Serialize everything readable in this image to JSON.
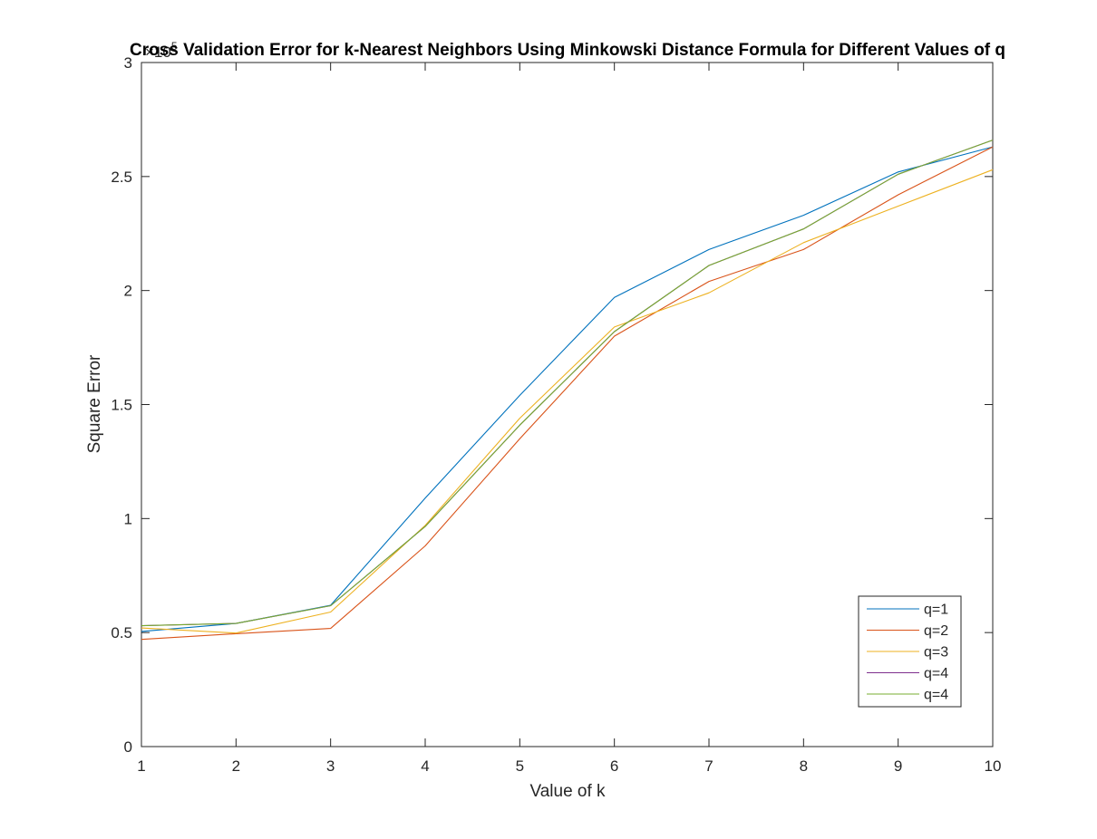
{
  "chart_data": {
    "type": "line",
    "title": "Cross Validation Error for k-Nearest Neighbors Using Minkowski Distance Formula for Different Values of q",
    "xlabel": "Value of k",
    "ylabel": "Square Error",
    "exponent_label": "×10",
    "exponent_power": "5",
    "x": [
      1,
      2,
      3,
      4,
      5,
      6,
      7,
      8,
      9,
      10
    ],
    "xlim": [
      1,
      10
    ],
    "ylim": [
      0,
      300000
    ],
    "xticks": [
      "1",
      "2",
      "3",
      "4",
      "5",
      "6",
      "7",
      "8",
      "9",
      "10"
    ],
    "yticks": [
      {
        "value": 0,
        "label": "0"
      },
      {
        "value": 50000,
        "label": "0.5"
      },
      {
        "value": 100000,
        "label": "1"
      },
      {
        "value": 150000,
        "label": "1.5"
      },
      {
        "value": 200000,
        "label": "2"
      },
      {
        "value": 250000,
        "label": "2.5"
      },
      {
        "value": 300000,
        "label": "3"
      }
    ],
    "grid": false,
    "legend_position": "bottom-right",
    "series": [
      {
        "name": "q=1",
        "color": "#0072BD",
        "values": [
          50500,
          54000,
          62000,
          109000,
          154000,
          197000,
          218000,
          233000,
          252000,
          263000
        ]
      },
      {
        "name": "q=2",
        "color": "#D95319",
        "values": [
          47000,
          49500,
          51800,
          88000,
          135000,
          180000,
          204000,
          218000,
          242000,
          263000
        ]
      },
      {
        "name": "q=3",
        "color": "#EDB120",
        "values": [
          52000,
          49800,
          59000,
          97000,
          144000,
          184000,
          199000,
          221000,
          237000,
          253000
        ]
      },
      {
        "name": "q=4",
        "color": "#7E2F8E",
        "values": [
          53000,
          54000,
          61800,
          96500,
          141000,
          182000,
          211000,
          227000,
          251000,
          266000
        ]
      },
      {
        "name": "q=4",
        "color": "#77AC30",
        "values": [
          53000,
          54000,
          61800,
          96500,
          141000,
          182000,
          211000,
          227000,
          251000,
          266000
        ]
      }
    ]
  }
}
